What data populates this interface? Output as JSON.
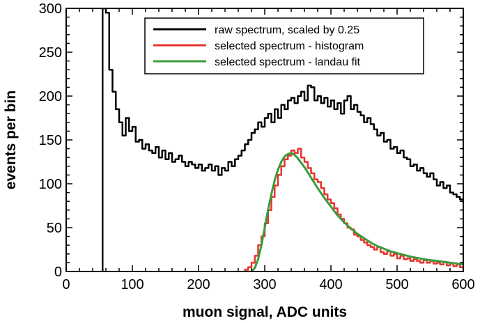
{
  "chart_data": {
    "type": "line",
    "xlabel": "muon signal, ADC units",
    "ylabel": "events per bin",
    "xlim": [
      0,
      600
    ],
    "ylim": [
      0,
      300
    ],
    "x_ticks": [
      0,
      100,
      200,
      300,
      400,
      500,
      600
    ],
    "y_ticks": [
      0,
      50,
      100,
      150,
      200,
      250,
      300
    ],
    "grid": false,
    "legend_position": "top-right",
    "series": [
      {
        "name": "raw spectrum, scaled by 0.25",
        "color": "#000000",
        "style": "step",
        "x": [
          55,
          60,
          65,
          70,
          75,
          80,
          85,
          90,
          95,
          100,
          105,
          110,
          115,
          120,
          125,
          130,
          135,
          140,
          145,
          150,
          155,
          160,
          165,
          170,
          175,
          180,
          185,
          190,
          195,
          200,
          205,
          210,
          215,
          220,
          225,
          230,
          235,
          240,
          245,
          250,
          255,
          260,
          265,
          270,
          275,
          280,
          285,
          290,
          295,
          300,
          305,
          310,
          315,
          320,
          325,
          330,
          335,
          340,
          345,
          350,
          355,
          360,
          365,
          370,
          375,
          380,
          385,
          390,
          395,
          400,
          405,
          410,
          415,
          420,
          425,
          430,
          435,
          440,
          445,
          450,
          455,
          460,
          465,
          470,
          475,
          480,
          485,
          490,
          495,
          500,
          505,
          510,
          515,
          520,
          525,
          530,
          535,
          540,
          545,
          550,
          555,
          560,
          565,
          570,
          575,
          580,
          585,
          590,
          595
        ],
        "values": [
          300,
          295,
          230,
          205,
          185,
          170,
          155,
          175,
          160,
          165,
          148,
          150,
          140,
          145,
          138,
          135,
          142,
          130,
          138,
          128,
          135,
          125,
          128,
          132,
          125,
          120,
          125,
          122,
          118,
          122,
          115,
          118,
          122,
          115,
          120,
          110,
          118,
          115,
          125,
          120,
          128,
          132,
          138,
          145,
          150,
          158,
          162,
          170,
          165,
          175,
          180,
          170,
          185,
          175,
          190,
          185,
          195,
          198,
          192,
          200,
          205,
          195,
          212,
          210,
          195,
          200,
          192,
          198,
          188,
          195,
          185,
          192,
          180,
          195,
          200,
          185,
          190,
          182,
          178,
          170,
          175,
          168,
          162,
          155,
          158,
          148,
          150,
          140,
          142,
          135,
          138,
          130,
          128,
          120,
          122,
          115,
          118,
          112,
          108,
          112,
          105,
          98,
          102,
          95,
          98,
          90,
          88,
          85,
          82
        ]
      },
      {
        "name": "selected spectrum - histogram",
        "color": "#e8332d",
        "style": "step",
        "x": [
          270,
          275,
          280,
          285,
          290,
          295,
          300,
          305,
          310,
          315,
          320,
          325,
          330,
          335,
          340,
          345,
          350,
          355,
          360,
          365,
          370,
          375,
          380,
          385,
          390,
          395,
          400,
          405,
          410,
          415,
          420,
          425,
          430,
          435,
          440,
          445,
          450,
          455,
          460,
          465,
          470,
          475,
          480,
          485,
          490,
          495,
          500,
          505,
          510,
          515,
          520,
          525,
          530,
          535,
          540,
          545,
          550,
          555,
          560,
          565,
          570,
          575,
          580,
          585,
          590,
          595
        ],
        "values": [
          2,
          5,
          10,
          18,
          30,
          40,
          55,
          70,
          85,
          98,
          110,
          120,
          128,
          132,
          138,
          135,
          140,
          130,
          125,
          118,
          112,
          105,
          102,
          95,
          88,
          82,
          78,
          72,
          65,
          60,
          55,
          50,
          48,
          42,
          40,
          36,
          33,
          30,
          28,
          25,
          28,
          22,
          20,
          23,
          18,
          20,
          15,
          18,
          14,
          15,
          12,
          14,
          12,
          10,
          13,
          10,
          12,
          9,
          10,
          8,
          11,
          7,
          9,
          6,
          8,
          5
        ]
      },
      {
        "name": "selected spectrum - landau fit",
        "color": "#3a9c3a",
        "style": "line",
        "x": [
          280,
          285,
          290,
          295,
          300,
          305,
          310,
          315,
          320,
          325,
          330,
          335,
          340,
          345,
          350,
          360,
          370,
          380,
          390,
          400,
          410,
          420,
          430,
          440,
          450,
          460,
          470,
          480,
          490,
          500,
          520,
          540,
          560,
          580,
          600
        ],
        "values": [
          0,
          4,
          14,
          30,
          50,
          70,
          88,
          104,
          116,
          125,
          131,
          134,
          135,
          133,
          129,
          119,
          107,
          95,
          84,
          74,
          64,
          56,
          49,
          43,
          38,
          33,
          29,
          26,
          23,
          21,
          17,
          14,
          12,
          10,
          8
        ]
      }
    ]
  }
}
